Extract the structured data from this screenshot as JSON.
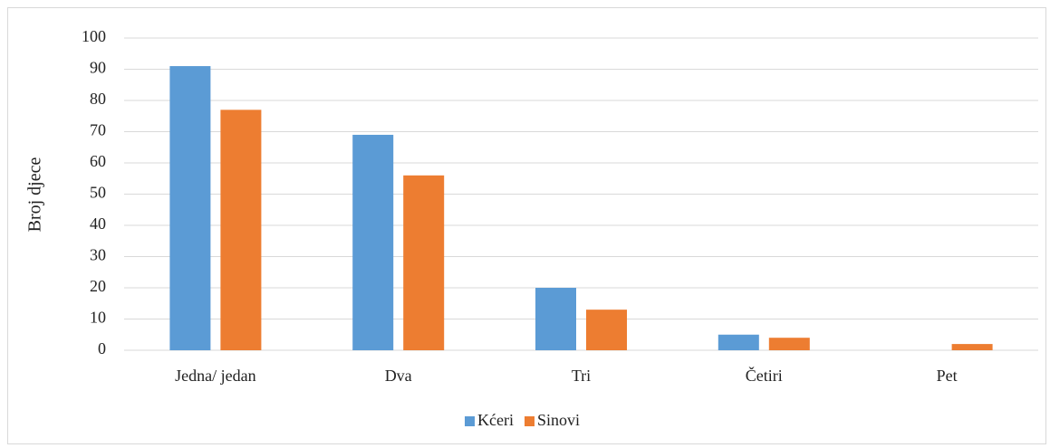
{
  "chart_data": {
    "type": "bar",
    "categories": [
      "Jedna/ jedan",
      "Dva",
      "Tri",
      "Četiri",
      "Pet"
    ],
    "series": [
      {
        "name": "Kćeri",
        "color": "#5b9bd5",
        "values": [
          91,
          69,
          20,
          5,
          0
        ]
      },
      {
        "name": "Sinovi",
        "color": "#ed7d31",
        "values": [
          77,
          56,
          13,
          4,
          2
        ]
      }
    ],
    "ylabel": "Broj djece",
    "ylim": [
      0,
      100
    ],
    "yticks": [
      0,
      10,
      20,
      30,
      40,
      50,
      60,
      70,
      80,
      90,
      100
    ],
    "grid": true,
    "legend": "bottom"
  }
}
